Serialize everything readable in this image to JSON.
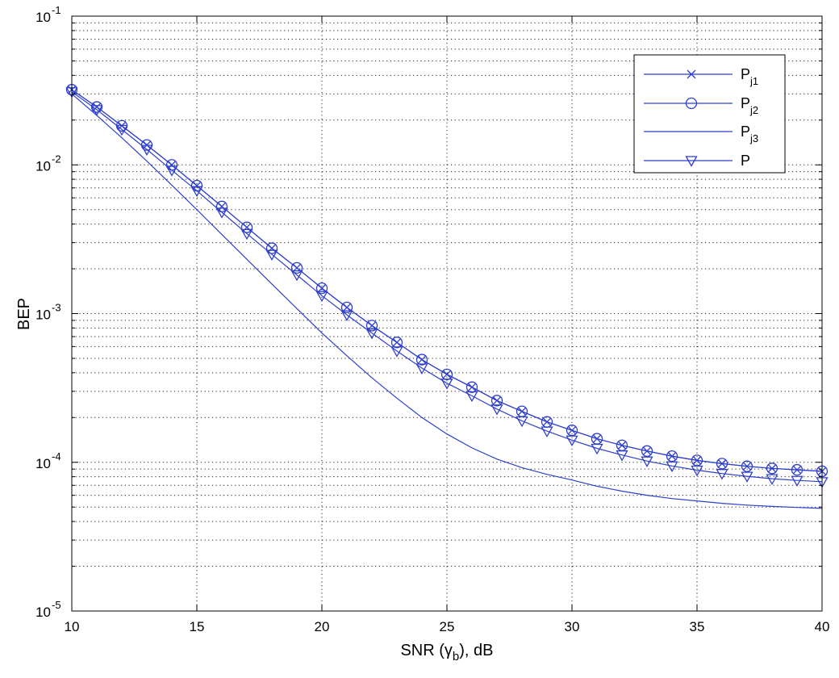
{
  "chart_data": {
    "type": "line",
    "xlabel": "SNR (γb), dB",
    "xlabel_main": "SNR (γ",
    "xlabel_sub": "b",
    "xlabel_tail": "), dB",
    "ylabel": "BEP",
    "xlim": [
      10,
      40
    ],
    "ylim": [
      1e-05,
      0.1
    ],
    "yscale": "log",
    "grid": true,
    "legend_position": "top-right",
    "x_ticks": [
      10,
      15,
      20,
      25,
      30,
      35,
      40
    ],
    "x_tick_labels": [
      "10",
      "15",
      "20",
      "25",
      "30",
      "35",
      "40"
    ],
    "y_ticks": [
      1e-05,
      0.0001,
      0.001,
      0.01,
      0.1
    ],
    "y_tick_labels": [
      {
        "base": "10",
        "exp": "-5"
      },
      {
        "base": "10",
        "exp": "-4"
      },
      {
        "base": "10",
        "exp": "-3"
      },
      {
        "base": "10",
        "exp": "-2"
      },
      {
        "base": "10",
        "exp": "-1"
      }
    ],
    "x": [
      10,
      11,
      12,
      13,
      14,
      15,
      16,
      17,
      18,
      19,
      20,
      21,
      22,
      23,
      24,
      25,
      26,
      27,
      28,
      29,
      30,
      31,
      32,
      33,
      34,
      35,
      36,
      37,
      38,
      39,
      40
    ],
    "series": [
      {
        "name": "Pj1",
        "label_main": "P",
        "label_sub": "j1",
        "marker": "x",
        "color": "#2f3fcf",
        "values": [
          0.032,
          0.0245,
          0.0183,
          0.0136,
          0.01,
          0.00725,
          0.00525,
          0.0038,
          0.00275,
          0.00203,
          0.00148,
          0.0011,
          0.00083,
          0.00064,
          0.00049,
          0.00039,
          0.00032,
          0.00026,
          0.00022,
          0.000187,
          0.000164,
          0.000144,
          0.00013,
          0.000119,
          0.00011,
          0.000103,
          9.8e-05,
          9.4e-05,
          9.1e-05,
          8.9e-05,
          8.7e-05
        ]
      },
      {
        "name": "Pj2",
        "label_main": "P",
        "label_sub": "j2",
        "marker": "o",
        "color": "#2f3fcf",
        "values": [
          0.032,
          0.0245,
          0.0183,
          0.0136,
          0.01,
          0.00725,
          0.00525,
          0.0038,
          0.00275,
          0.00203,
          0.00148,
          0.0011,
          0.00083,
          0.00064,
          0.00049,
          0.00039,
          0.00032,
          0.00026,
          0.00022,
          0.000187,
          0.000164,
          0.000144,
          0.00013,
          0.000119,
          0.00011,
          0.000103,
          9.8e-05,
          9.4e-05,
          9.1e-05,
          8.9e-05,
          8.7e-05
        ]
      },
      {
        "name": "Pj3",
        "label_main": "P",
        "label_sub": "j3",
        "marker": "none",
        "color": "#2f3fcf",
        "values": [
          0.03,
          0.0215,
          0.0152,
          0.0106,
          0.0073,
          0.005,
          0.0034,
          0.00232,
          0.00158,
          0.00108,
          0.00074,
          0.00052,
          0.00037,
          0.00027,
          0.0002,
          0.000155,
          0.000125,
          0.000105,
          9.2e-05,
          8.3e-05,
          7.6e-05,
          6.9e-05,
          6.4e-05,
          6e-05,
          5.7e-05,
          5.5e-05,
          5.3e-05,
          5.15e-05,
          5.05e-05,
          4.97e-05,
          4.9e-05
        ]
      },
      {
        "name": "P",
        "label_main": "P",
        "label_sub": "",
        "marker": "v",
        "color": "#2f3fcf",
        "values": [
          0.031,
          0.0235,
          0.0173,
          0.0127,
          0.0092,
          0.0067,
          0.0048,
          0.00345,
          0.0025,
          0.00182,
          0.00132,
          0.00098,
          0.00074,
          0.00056,
          0.00043,
          0.00034,
          0.00028,
          0.000228,
          0.00019,
          0.000162,
          0.000141,
          0.000124,
          0.000112,
          0.000102,
          9.45e-05,
          8.85e-05,
          8.4e-05,
          8.05e-05,
          7.75e-05,
          7.55e-05,
          7.4e-05
        ]
      }
    ]
  }
}
